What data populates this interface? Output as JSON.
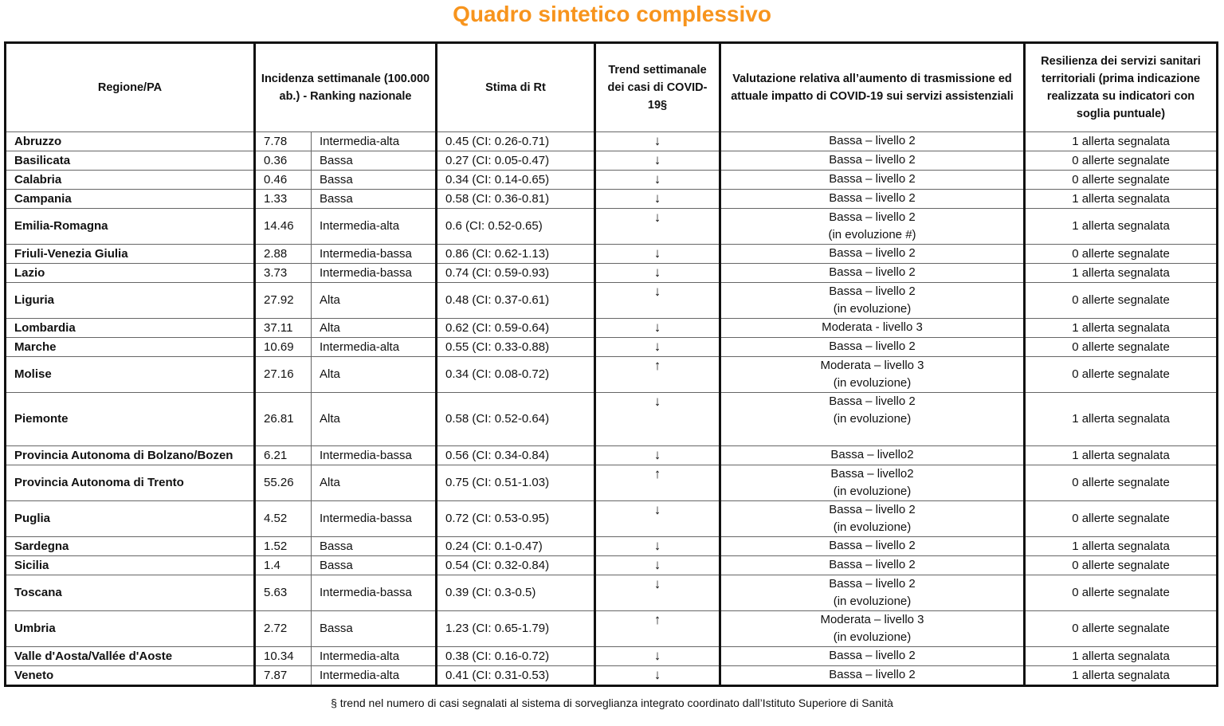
{
  "title": "Quadro sintetico complessivo",
  "headers": {
    "region": "Regione/PA",
    "incidence": "Incidenza settimanale (100.000 ab.) - Ranking nazionale",
    "rt": "Stima di Rt",
    "trend": "Trend settimanale dei casi di COVID-19§",
    "evaluation": "Valutazione relativa all’aumento di trasmissione ed attuale impatto di COVID-19 sui servizi assistenziali",
    "resilience": "Resilienza dei servizi sanitari territoriali (prima indicazione realizzata su indicatori con soglia puntuale)"
  },
  "rows": [
    {
      "region": "Abruzzo",
      "incidence": "7.78",
      "ranking": "Intermedia-alta",
      "rt": "0.45 (CI: 0.26-0.71)",
      "trend": "down",
      "eval": "Bassa – livello 2",
      "eval2": "",
      "resilience": "1 allerta segnalata"
    },
    {
      "region": "Basilicata",
      "incidence": "0.36",
      "ranking": "Bassa",
      "rt": "0.27 (CI: 0.05-0.47)",
      "trend": "down",
      "eval": "Bassa – livello 2",
      "eval2": "",
      "resilience": "0 allerte segnalate"
    },
    {
      "region": "Calabria",
      "incidence": "0.46",
      "ranking": "Bassa",
      "rt": "0.34 (CI: 0.14-0.65)",
      "trend": "down",
      "eval": "Bassa – livello 2",
      "eval2": "",
      "resilience": "0 allerte segnalate"
    },
    {
      "region": "Campania",
      "incidence": "1.33",
      "ranking": "Bassa",
      "rt": "0.58 (CI: 0.36-0.81)",
      "trend": "down",
      "eval": "Bassa – livello 2",
      "eval2": "",
      "resilience": "1 allerta segnalata"
    },
    {
      "region": "Emilia-Romagna",
      "incidence": "14.46",
      "ranking": "Intermedia-alta",
      "rt": "0.6 (CI: 0.52-0.65)",
      "trend": "down",
      "eval": "Bassa – livello 2",
      "eval2": "(in evoluzione #)",
      "resilience": "1 allerta segnalata"
    },
    {
      "region": "Friuli-Venezia Giulia",
      "incidence": "2.88",
      "ranking": "Intermedia-bassa",
      "rt": "0.86 (CI: 0.62-1.13)",
      "trend": "down",
      "eval": "Bassa – livello 2",
      "eval2": "",
      "resilience": "0 allerte segnalate"
    },
    {
      "region": "Lazio",
      "incidence": "3.73",
      "ranking": "Intermedia-bassa",
      "rt": "0.74 (CI: 0.59-0.93)",
      "trend": "down",
      "eval": "Bassa – livello 2",
      "eval2": "",
      "resilience": "1 allerta segnalata"
    },
    {
      "region": "Liguria",
      "incidence": "27.92",
      "ranking": "Alta",
      "rt": "0.48 (CI: 0.37-0.61)",
      "trend": "down",
      "eval": "Bassa – livello 2",
      "eval2": "(in evoluzione)",
      "resilience": "0 allerte segnalate"
    },
    {
      "region": "Lombardia",
      "incidence": "37.11",
      "ranking": "Alta",
      "rt": "0.62 (CI: 0.59-0.64)",
      "trend": "down",
      "eval": "Moderata  - livello 3",
      "eval2": "",
      "resilience": "1 allerta segnalata"
    },
    {
      "region": "Marche",
      "incidence": "10.69",
      "ranking": "Intermedia-alta",
      "rt": "0.55 (CI: 0.33-0.88)",
      "trend": "down",
      "eval": "Bassa – livello 2",
      "eval2": "",
      "resilience": "0 allerte segnalate"
    },
    {
      "region": "Molise",
      "incidence": "27.16",
      "ranking": "Alta",
      "rt": "0.34 (CI: 0.08-0.72)",
      "trend": "up",
      "eval": "Moderata – livello 3",
      "eval2": "(in evoluzione)",
      "resilience": "0 allerte segnalate"
    },
    {
      "region": "Piemonte",
      "incidence": "26.81",
      "ranking": "Alta",
      "rt": "0.58 (CI: 0.52-0.64)",
      "trend": "down",
      "eval": "Bassa – livello 2",
      "eval2": "(in evoluzione)",
      "resilience": "1 allerta segnalata",
      "tall": true
    },
    {
      "region": "Provincia Autonoma di Bolzano/Bozen",
      "incidence": "6.21",
      "ranking": "Intermedia-bassa",
      "rt": "0.56 (CI: 0.34-0.84)",
      "trend": "down",
      "eval": "Bassa – livello2",
      "eval2": "",
      "resilience": "1 allerta segnalata"
    },
    {
      "region": "Provincia Autonoma di Trento",
      "incidence": "55.26",
      "ranking": "Alta",
      "rt": "0.75 (CI: 0.51-1.03)",
      "trend": "up",
      "eval": "Bassa – livello2",
      "eval2": "(in evoluzione)",
      "resilience": "0 allerte segnalate"
    },
    {
      "region": "Puglia",
      "incidence": "4.52",
      "ranking": "Intermedia-bassa",
      "rt": "0.72 (CI: 0.53-0.95)",
      "trend": "down",
      "eval": "Bassa – livello 2",
      "eval2": "(in evoluzione)",
      "resilience": "0 allerte segnalate"
    },
    {
      "region": "Sardegna",
      "incidence": "1.52",
      "ranking": "Bassa",
      "rt": "0.24 (CI: 0.1-0.47)",
      "trend": "down",
      "eval": "Bassa – livello 2",
      "eval2": "",
      "resilience": "1 allerta segnalata"
    },
    {
      "region": "Sicilia",
      "incidence": "1.4",
      "ranking": "Bassa",
      "rt": "0.54 (CI: 0.32-0.84)",
      "trend": "down",
      "eval": "Bassa – livello 2",
      "eval2": "",
      "resilience": "0 allerte segnalate"
    },
    {
      "region": "Toscana",
      "incidence": "5.63",
      "ranking": "Intermedia-bassa",
      "rt": "0.39 (CI: 0.3-0.5)",
      "trend": "down",
      "eval": "Bassa – livello 2",
      "eval2": "(in evoluzione)",
      "resilience": "0 allerte segnalate"
    },
    {
      "region": "Umbria",
      "incidence": "2.72",
      "ranking": "Bassa",
      "rt": "1.23 (CI: 0.65-1.79)",
      "trend": "up",
      "eval": "Moderata – livello 3",
      "eval2": "(in evoluzione)",
      "resilience": "0 allerte segnalate"
    },
    {
      "region": "Valle d'Aosta/Vallée d'Aoste",
      "incidence": "10.34",
      "ranking": "Intermedia-alta",
      "rt": "0.38 (CI: 0.16-0.72)",
      "trend": "down",
      "eval": "Bassa – livello 2",
      "eval2": "",
      "resilience": "1 allerta segnalata"
    },
    {
      "region": "Veneto",
      "incidence": "7.87",
      "ranking": "Intermedia-alta",
      "rt": "0.41 (CI: 0.31-0.53)",
      "trend": "down",
      "eval": "Bassa – livello 2",
      "eval2": "",
      "resilience": "1 allerta segnalata"
    }
  ],
  "arrows": {
    "down": "↓",
    "up": "↑"
  },
  "footer": "§ trend nel numero di casi segnalati al sistema di sorveglianza integrato coordinato dall’Istituto Superiore di Sanità"
}
